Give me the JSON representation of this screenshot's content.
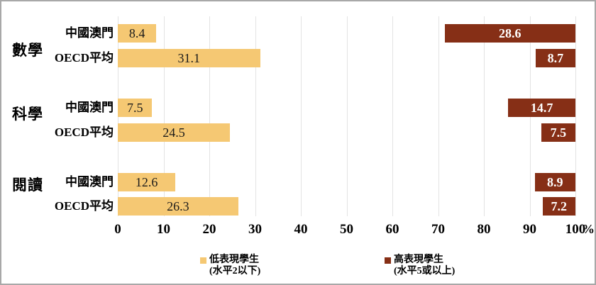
{
  "chart_data": {
    "type": "bar",
    "orientation": "horizontal",
    "title": "",
    "xlabel_unit": "%",
    "xlim": [
      0,
      100
    ],
    "x_ticks": [
      0,
      10,
      20,
      30,
      40,
      50,
      60,
      70,
      80,
      90,
      100
    ],
    "grid": "vertical-gridlines-on",
    "groups": [
      "數學",
      "科學",
      "閱讀"
    ],
    "categories": [
      "數學 中國澳門",
      "數學 OECD平均",
      "科學 中國澳門",
      "科學 OECD平均",
      "閱讀 中國澳門",
      "閱讀 OECD平均"
    ],
    "series": [
      {
        "name": "低表現學生 (水平2以下)",
        "anchor": "left",
        "values": [
          8.4,
          31.1,
          7.5,
          24.5,
          12.6,
          26.3
        ]
      },
      {
        "name": "高表現學生 (水平5或以上)",
        "anchor": "right",
        "values": [
          28.6,
          8.7,
          14.7,
          7.5,
          8.9,
          7.2
        ]
      }
    ],
    "rows": [
      {
        "group": "數學",
        "label": "中國澳門",
        "low": 8.4,
        "high": 28.6
      },
      {
        "group": "數學",
        "label": "OECD平均",
        "low": 31.1,
        "high": 8.7
      },
      {
        "group": "科學",
        "label": "中國澳門",
        "low": 7.5,
        "high": 14.7
      },
      {
        "group": "科學",
        "label": "OECD平均",
        "low": 24.5,
        "high": 7.5
      },
      {
        "group": "閱讀",
        "label": "中國澳門",
        "low": 12.6,
        "high": 8.9
      },
      {
        "group": "閱讀",
        "label": "OECD平均",
        "low": 26.3,
        "high": 7.2
      }
    ],
    "legend": [
      {
        "line1": "低表現學生",
        "line2": "(水平2以下)",
        "series": "low"
      },
      {
        "line1": "高表現學生",
        "line2": "(水平5或以上)",
        "series": "high"
      }
    ],
    "colors": {
      "low_bar": "#F5C873",
      "high_bar": "#862F16",
      "low_value_text": "#1a1a1a",
      "high_value_text": "#ffffff",
      "gridline": "#e3e3e3",
      "text": "#000000"
    },
    "legend_position": "bottom"
  }
}
